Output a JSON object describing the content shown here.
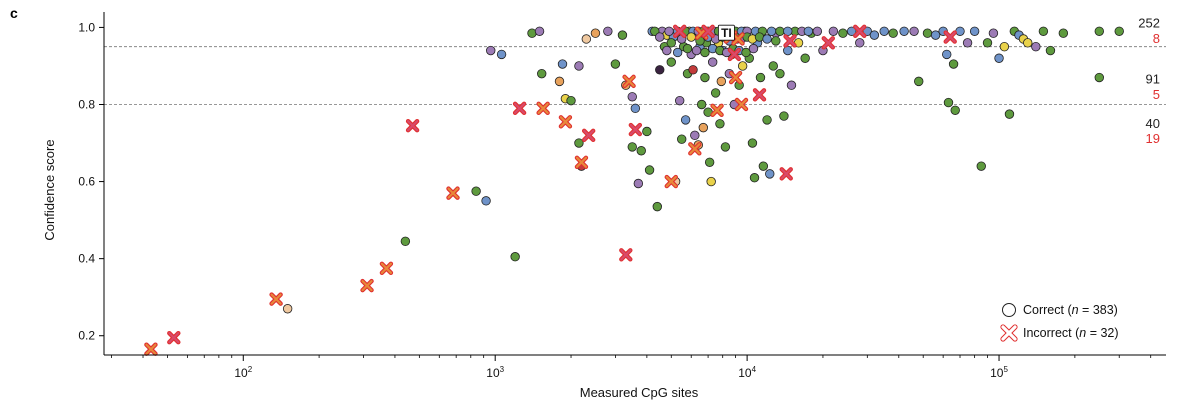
{
  "chart_data": {
    "type": "scatter",
    "panel_label": "c",
    "xlabel": "Measured CpG sites",
    "ylabel": "Confidence score",
    "x_scale": "log",
    "xlim": [
      28,
      460000
    ],
    "ylim": [
      0.15,
      1.04
    ],
    "x_ticks": [
      {
        "value": 100,
        "base": "10",
        "exp": "2"
      },
      {
        "value": 1000,
        "base": "10",
        "exp": "3"
      },
      {
        "value": 10000,
        "base": "10",
        "exp": "4"
      },
      {
        "value": 100000,
        "base": "10",
        "exp": "5"
      }
    ],
    "y_ticks": [
      {
        "value": 1.0,
        "label": "1.0"
      },
      {
        "value": 0.8,
        "label": "0.8"
      },
      {
        "value": 0.6,
        "label": "0.6"
      },
      {
        "value": 0.4,
        "label": "0.4"
      },
      {
        "value": 0.2,
        "label": "0.2"
      }
    ],
    "thresholds": [
      0.95,
      0.8
    ],
    "band_counts": [
      {
        "y": 1.01,
        "text": "252",
        "color": "#222222"
      },
      {
        "y": 0.97,
        "text": "8",
        "color": "#e03030"
      },
      {
        "y": 0.865,
        "text": "91",
        "color": "#222222"
      },
      {
        "y": 0.825,
        "text": "5",
        "color": "#e03030"
      },
      {
        "y": 0.75,
        "text": "40",
        "color": "#222222"
      },
      {
        "y": 0.71,
        "text": "19",
        "color": "#e03030"
      }
    ],
    "legend": {
      "placement": "bottom-right",
      "items": [
        {
          "name": "correct",
          "label": "Correct (",
          "n_label": "n",
          "n_value": " = 383)"
        },
        {
          "name": "incorrect",
          "label": "Incorrect (",
          "n_label": "n",
          "n_value": " = 32)"
        }
      ]
    },
    "annotation": {
      "text": "TI",
      "x": 8200,
      "y": 0.985
    },
    "colors": {
      "green": "#5e9a3e",
      "purple": "#9c7bb5",
      "blue": "#6f93c9",
      "yellow": "#e9d24a",
      "orange": "#e8a25c",
      "peach": "#f0c9a0",
      "teal": "#6fb6b3",
      "red": "#c23b3b",
      "dark": "#3a2340",
      "incorrect_orange": "#e8883a",
      "incorrect_pink": "#d94a6a",
      "incorrect_outline": "#e03030"
    },
    "correct_points": [
      [
        150,
        0.27,
        "peach"
      ],
      [
        440,
        0.445,
        "green"
      ],
      [
        840,
        0.575,
        "green"
      ],
      [
        920,
        0.55,
        "blue"
      ],
      [
        960,
        0.94,
        "purple"
      ],
      [
        1060,
        0.93,
        "blue"
      ],
      [
        1200,
        0.405,
        "green"
      ],
      [
        1400,
        0.985,
        "green"
      ],
      [
        1500,
        0.99,
        "purple"
      ],
      [
        1530,
        0.88,
        "green"
      ],
      [
        1800,
        0.86,
        "orange"
      ],
      [
        1850,
        0.905,
        "blue"
      ],
      [
        1900,
        0.815,
        "yellow"
      ],
      [
        2000,
        0.81,
        "green"
      ],
      [
        2150,
        0.9,
        "purple"
      ],
      [
        2150,
        0.7,
        "green"
      ],
      [
        2200,
        0.64,
        "red"
      ],
      [
        2300,
        0.97,
        "peach"
      ],
      [
        2500,
        0.985,
        "orange"
      ],
      [
        2800,
        0.99,
        "purple"
      ],
      [
        3000,
        0.905,
        "green"
      ],
      [
        3200,
        0.98,
        "green"
      ],
      [
        3300,
        0.85,
        "orange"
      ],
      [
        3500,
        0.82,
        "purple"
      ],
      [
        3600,
        0.79,
        "blue"
      ],
      [
        3500,
        0.69,
        "green"
      ],
      [
        3700,
        0.595,
        "purple"
      ],
      [
        3800,
        0.68,
        "green"
      ],
      [
        4000,
        0.73,
        "green"
      ],
      [
        4100,
        0.63,
        "green"
      ],
      [
        4400,
        0.535,
        "green"
      ],
      [
        4500,
        0.89,
        "dark"
      ],
      [
        4600,
        0.99,
        "purple"
      ],
      [
        4700,
        0.95,
        "green"
      ],
      [
        4800,
        0.98,
        "yellow"
      ],
      [
        5000,
        0.91,
        "green"
      ],
      [
        5100,
        0.975,
        "blue"
      ],
      [
        5200,
        0.6,
        "peach"
      ],
      [
        5400,
        0.81,
        "purple"
      ],
      [
        5500,
        0.71,
        "green"
      ],
      [
        5600,
        0.95,
        "green"
      ],
      [
        5700,
        0.76,
        "blue"
      ],
      [
        5800,
        0.88,
        "green"
      ],
      [
        5900,
        0.99,
        "yellow"
      ],
      [
        6000,
        0.93,
        "purple"
      ],
      [
        6100,
        0.89,
        "red"
      ],
      [
        6200,
        0.72,
        "purple"
      ],
      [
        6300,
        0.98,
        "purple"
      ],
      [
        6400,
        0.695,
        "orange"
      ],
      [
        6500,
        0.95,
        "blue"
      ],
      [
        6600,
        0.8,
        "green"
      ],
      [
        6700,
        0.74,
        "orange"
      ],
      [
        6800,
        0.87,
        "green"
      ],
      [
        6900,
        0.96,
        "green"
      ],
      [
        7000,
        0.78,
        "green"
      ],
      [
        7100,
        0.65,
        "green"
      ],
      [
        7200,
        0.6,
        "yellow"
      ],
      [
        7300,
        0.91,
        "purple"
      ],
      [
        7400,
        0.985,
        "blue"
      ],
      [
        7500,
        0.83,
        "green"
      ],
      [
        7700,
        0.96,
        "yellow"
      ],
      [
        7800,
        0.75,
        "green"
      ],
      [
        7900,
        0.86,
        "orange"
      ],
      [
        8000,
        0.94,
        "blue"
      ],
      [
        8200,
        0.69,
        "green"
      ],
      [
        8400,
        0.99,
        "green"
      ],
      [
        8500,
        0.88,
        "purple"
      ],
      [
        8700,
        0.93,
        "green"
      ],
      [
        8900,
        0.8,
        "purple"
      ],
      [
        9100,
        0.97,
        "orange"
      ],
      [
        9300,
        0.85,
        "green"
      ],
      [
        9600,
        0.9,
        "yellow"
      ],
      [
        9800,
        0.99,
        "purple"
      ],
      [
        10200,
        0.92,
        "green"
      ],
      [
        10500,
        0.7,
        "green"
      ],
      [
        10700,
        0.61,
        "green"
      ],
      [
        11000,
        0.96,
        "blue"
      ],
      [
        11300,
        0.87,
        "green"
      ],
      [
        11600,
        0.64,
        "green"
      ],
      [
        12000,
        0.76,
        "green"
      ],
      [
        12300,
        0.62,
        "blue"
      ],
      [
        12700,
        0.9,
        "green"
      ],
      [
        13000,
        0.985,
        "purple"
      ],
      [
        13500,
        0.88,
        "green"
      ],
      [
        14000,
        0.77,
        "green"
      ],
      [
        14500,
        0.94,
        "blue"
      ],
      [
        15000,
        0.85,
        "purple"
      ],
      [
        15500,
        0.99,
        "green"
      ],
      [
        16000,
        0.96,
        "yellow"
      ],
      [
        17000,
        0.92,
        "green"
      ],
      [
        18000,
        0.985,
        "green"
      ],
      [
        19000,
        0.99,
        "purple"
      ],
      [
        20000,
        0.94,
        "purple"
      ],
      [
        22000,
        0.99,
        "purple"
      ],
      [
        24000,
        0.985,
        "green"
      ],
      [
        26000,
        0.99,
        "blue"
      ],
      [
        28000,
        0.96,
        "purple"
      ],
      [
        30000,
        0.99,
        "blue"
      ],
      [
        32000,
        0.98,
        "blue"
      ],
      [
        35000,
        0.99,
        "blue"
      ],
      [
        38000,
        0.985,
        "green"
      ],
      [
        42000,
        0.99,
        "blue"
      ],
      [
        46000,
        0.99,
        "purple"
      ],
      [
        48000,
        0.86,
        "green"
      ],
      [
        52000,
        0.985,
        "green"
      ],
      [
        56000,
        0.98,
        "blue"
      ],
      [
        60000,
        0.99,
        "blue"
      ],
      [
        62000,
        0.93,
        "blue"
      ],
      [
        63000,
        0.805,
        "green"
      ],
      [
        66000,
        0.905,
        "green"
      ],
      [
        67000,
        0.785,
        "green"
      ],
      [
        70000,
        0.99,
        "blue"
      ],
      [
        75000,
        0.96,
        "purple"
      ],
      [
        80000,
        0.99,
        "blue"
      ],
      [
        85000,
        0.64,
        "green"
      ],
      [
        90000,
        0.96,
        "green"
      ],
      [
        95000,
        0.985,
        "purple"
      ],
      [
        100000,
        0.92,
        "blue"
      ],
      [
        105000,
        0.95,
        "yellow"
      ],
      [
        110000,
        0.775,
        "green"
      ],
      [
        115000,
        0.99,
        "green"
      ],
      [
        120000,
        0.98,
        "blue"
      ],
      [
        125000,
        0.97,
        "yellow"
      ],
      [
        130000,
        0.96,
        "yellow"
      ],
      [
        140000,
        0.95,
        "purple"
      ],
      [
        150000,
        0.99,
        "green"
      ],
      [
        160000,
        0.94,
        "green"
      ],
      [
        180000,
        0.985,
        "green"
      ],
      [
        250000,
        0.87,
        "green"
      ],
      [
        250000,
        0.99,
        "green"
      ],
      [
        300000,
        0.99,
        "green"
      ],
      [
        4200,
        0.99,
        "blue"
      ],
      [
        4300,
        0.99,
        "green"
      ],
      [
        4900,
        0.99,
        "purple"
      ],
      [
        5300,
        0.99,
        "blue"
      ],
      [
        5700,
        0.99,
        "green"
      ],
      [
        6100,
        0.99,
        "blue"
      ],
      [
        6400,
        0.99,
        "purple"
      ],
      [
        6700,
        0.99,
        "green"
      ],
      [
        7000,
        0.99,
        "blue"
      ],
      [
        7400,
        0.99,
        "purple"
      ],
      [
        7700,
        0.99,
        "green"
      ],
      [
        8100,
        0.99,
        "blue"
      ],
      [
        8600,
        0.99,
        "purple"
      ],
      [
        9000,
        0.99,
        "green"
      ],
      [
        9500,
        0.99,
        "blue"
      ],
      [
        10000,
        0.99,
        "purple"
      ],
      [
        10800,
        0.99,
        "blue"
      ],
      [
        11500,
        0.99,
        "green"
      ],
      [
        12500,
        0.99,
        "blue"
      ],
      [
        13500,
        0.99,
        "green"
      ],
      [
        14500,
        0.99,
        "blue"
      ],
      [
        16500,
        0.99,
        "purple"
      ],
      [
        17500,
        0.99,
        "blue"
      ],
      [
        4500,
        0.975,
        "purple"
      ],
      [
        5000,
        0.96,
        "green"
      ],
      [
        5500,
        0.97,
        "purple"
      ],
      [
        6000,
        0.975,
        "yellow"
      ],
      [
        6500,
        0.965,
        "green"
      ],
      [
        7000,
        0.975,
        "blue"
      ],
      [
        7500,
        0.97,
        "purple"
      ],
      [
        8000,
        0.975,
        "green"
      ],
      [
        8500,
        0.965,
        "blue"
      ],
      [
        9000,
        0.975,
        "green"
      ],
      [
        9500,
        0.97,
        "purple"
      ],
      [
        10000,
        0.975,
        "green"
      ],
      [
        10500,
        0.97,
        "yellow"
      ],
      [
        11200,
        0.975,
        "green"
      ],
      [
        12000,
        0.97,
        "blue"
      ],
      [
        13000,
        0.965,
        "green"
      ],
      [
        4800,
        0.94,
        "purple"
      ],
      [
        5300,
        0.935,
        "blue"
      ],
      [
        5800,
        0.945,
        "green"
      ],
      [
        6300,
        0.94,
        "purple"
      ],
      [
        6800,
        0.935,
        "green"
      ],
      [
        7300,
        0.945,
        "blue"
      ],
      [
        7800,
        0.94,
        "green"
      ],
      [
        8300,
        0.935,
        "purple"
      ],
      [
        8800,
        0.945,
        "green"
      ],
      [
        9300,
        0.94,
        "blue"
      ],
      [
        9900,
        0.935,
        "green"
      ],
      [
        10600,
        0.945,
        "purple"
      ]
    ],
    "incorrect_points": [
      [
        43,
        0.165,
        "orange"
      ],
      [
        53,
        0.195,
        "pink"
      ],
      [
        135,
        0.295,
        "orange"
      ],
      [
        310,
        0.33,
        "orange"
      ],
      [
        370,
        0.375,
        "orange"
      ],
      [
        470,
        0.745,
        "pink"
      ],
      [
        680,
        0.57,
        "orange"
      ],
      [
        1250,
        0.79,
        "pink"
      ],
      [
        1550,
        0.79,
        "orange"
      ],
      [
        1900,
        0.755,
        "orange"
      ],
      [
        2200,
        0.65,
        "orange"
      ],
      [
        2350,
        0.72,
        "pink"
      ],
      [
        3300,
        0.41,
        "pink"
      ],
      [
        3400,
        0.86,
        "orange"
      ],
      [
        3600,
        0.735,
        "pink"
      ],
      [
        5000,
        0.6,
        "orange"
      ],
      [
        5400,
        0.99,
        "pink"
      ],
      [
        6200,
        0.685,
        "orange"
      ],
      [
        6600,
        0.985,
        "orange"
      ],
      [
        7600,
        0.785,
        "orange"
      ],
      [
        8600,
        0.975,
        "orange"
      ],
      [
        8900,
        0.93,
        "pink"
      ],
      [
        9000,
        0.87,
        "orange"
      ],
      [
        9500,
        0.8,
        "orange"
      ],
      [
        11200,
        0.825,
        "pink"
      ],
      [
        14300,
        0.62,
        "pink"
      ],
      [
        14800,
        0.965,
        "pink"
      ],
      [
        21000,
        0.96,
        "pink"
      ],
      [
        28000,
        0.99,
        "pink"
      ],
      [
        64000,
        0.975,
        "pink"
      ],
      [
        9200,
        0.97,
        "orange"
      ],
      [
        7000,
        0.99,
        "pink"
      ]
    ]
  }
}
